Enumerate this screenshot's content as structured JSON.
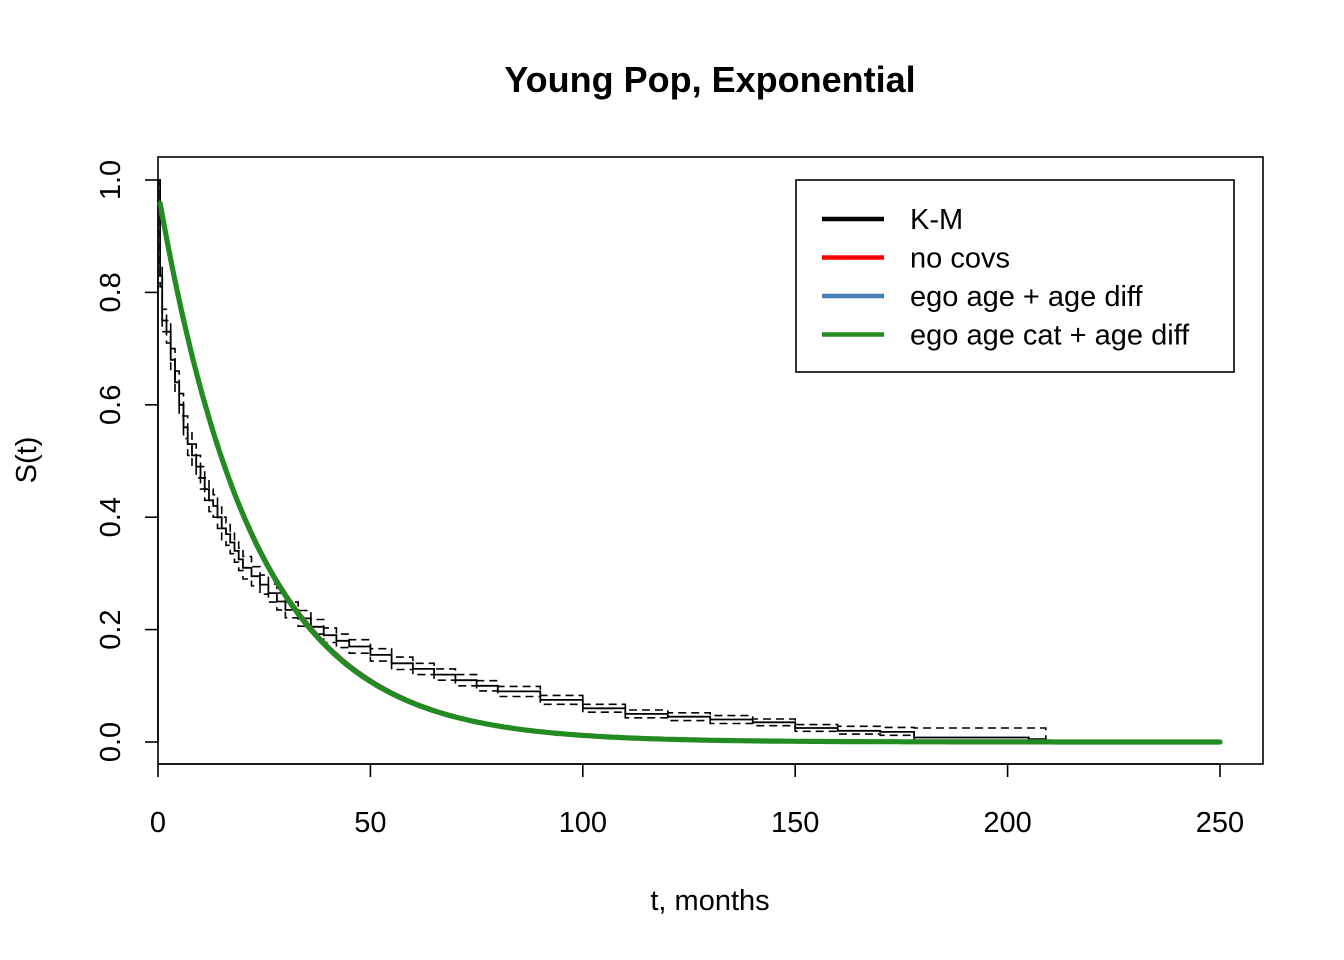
{
  "chart_data": {
    "type": "line",
    "title": "Young Pop, Exponential",
    "xlabel": "t, months",
    "ylabel": "S(t)",
    "xlim": [
      0,
      250
    ],
    "ylim": [
      0,
      1
    ],
    "x_ticks": [
      0,
      50,
      100,
      150,
      200,
      250
    ],
    "y_ticks": [
      0.0,
      0.2,
      0.4,
      0.6,
      0.8,
      1.0
    ],
    "x_tick_labels": [
      "0",
      "50",
      "100",
      "150",
      "200",
      "250"
    ],
    "y_tick_labels": [
      "0.0",
      "0.2",
      "0.4",
      "0.6",
      "0.8",
      "1.0"
    ],
    "grid": false,
    "legend_position": "top-right",
    "legend": [
      {
        "label": "K-M",
        "color": "#000000"
      },
      {
        "label": "no covs",
        "color": "#ff0000"
      },
      {
        "label": "ego age + age diff",
        "color": "#4682b4"
      },
      {
        "label": "ego age cat + age diff",
        "color": "#228b22"
      }
    ],
    "km": {
      "name": "K-M",
      "color": "#000000",
      "x": [
        0,
        0.5,
        1,
        2,
        3,
        4,
        5,
        6,
        7,
        8,
        9,
        10,
        11,
        12,
        13,
        14,
        15,
        16,
        17,
        18,
        19,
        20,
        22,
        24,
        26,
        28,
        30,
        33,
        36,
        39,
        42,
        45,
        50,
        55,
        60,
        65,
        70,
        75,
        80,
        90,
        100,
        110,
        120,
        130,
        140,
        150,
        160,
        170,
        177,
        178,
        205,
        209
      ],
      "y": [
        1.0,
        0.83,
        0.75,
        0.73,
        0.68,
        0.64,
        0.6,
        0.56,
        0.53,
        0.51,
        0.49,
        0.47,
        0.45,
        0.43,
        0.42,
        0.4,
        0.38,
        0.37,
        0.355,
        0.34,
        0.325,
        0.31,
        0.295,
        0.28,
        0.265,
        0.25,
        0.235,
        0.22,
        0.205,
        0.19,
        0.18,
        0.17,
        0.155,
        0.14,
        0.13,
        0.12,
        0.11,
        0.1,
        0.09,
        0.075,
        0.06,
        0.05,
        0.045,
        0.04,
        0.035,
        0.025,
        0.02,
        0.018,
        0.018,
        0.008,
        0.005,
        0.0
      ],
      "ci_lower": [
        1.0,
        0.81,
        0.73,
        0.71,
        0.66,
        0.62,
        0.58,
        0.54,
        0.51,
        0.49,
        0.47,
        0.45,
        0.43,
        0.41,
        0.4,
        0.38,
        0.36,
        0.35,
        0.335,
        0.32,
        0.305,
        0.29,
        0.278,
        0.263,
        0.249,
        0.235,
        0.221,
        0.206,
        0.192,
        0.177,
        0.168,
        0.158,
        0.144,
        0.129,
        0.12,
        0.11,
        0.1,
        0.091,
        0.081,
        0.067,
        0.053,
        0.043,
        0.038,
        0.033,
        0.029,
        0.019,
        0.014,
        0.012,
        0.012,
        0.003,
        0.001,
        0.0
      ],
      "ci_upper": [
        1.0,
        0.85,
        0.77,
        0.75,
        0.7,
        0.66,
        0.62,
        0.58,
        0.55,
        0.53,
        0.51,
        0.49,
        0.47,
        0.45,
        0.44,
        0.42,
        0.4,
        0.39,
        0.375,
        0.36,
        0.345,
        0.33,
        0.312,
        0.297,
        0.281,
        0.265,
        0.249,
        0.234,
        0.218,
        0.203,
        0.192,
        0.182,
        0.166,
        0.151,
        0.14,
        0.13,
        0.12,
        0.109,
        0.099,
        0.083,
        0.067,
        0.057,
        0.052,
        0.047,
        0.041,
        0.031,
        0.028,
        0.026,
        0.026,
        0.025,
        0.025,
        0.0
      ]
    },
    "series": [
      {
        "name": "no covs",
        "color": "#ff0000",
        "model": "exponential",
        "s0": 0.98,
        "rate": 0.0435
      },
      {
        "name": "ego age + age diff",
        "color": "#4682b4",
        "model": "exponential",
        "s0": 0.98,
        "rate": 0.0438
      },
      {
        "name": "ego age cat + age diff",
        "color": "#228b22",
        "model": "exponential",
        "s0": 0.98,
        "rate": 0.0442
      }
    ],
    "fit_x_range": [
      0.5,
      250
    ]
  }
}
